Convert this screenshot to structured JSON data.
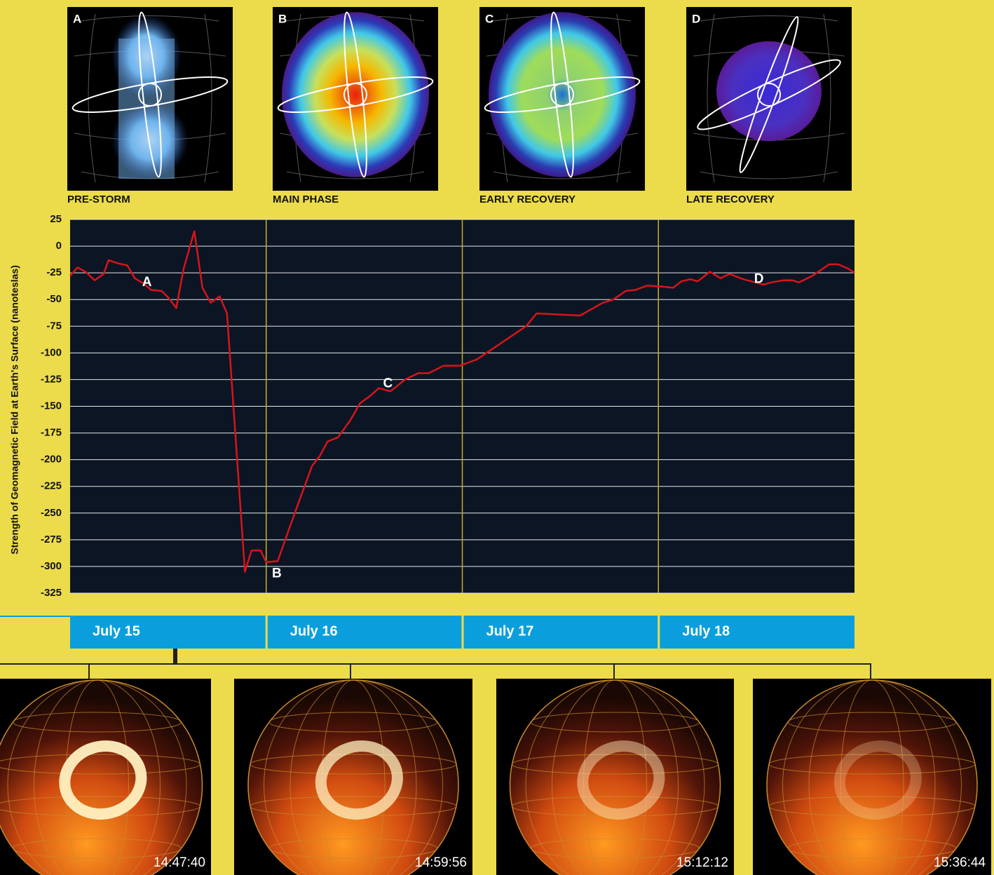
{
  "panels_top": [
    {
      "letter": "A",
      "label": "PRE-STORM"
    },
    {
      "letter": "B",
      "label": "MAIN PHASE"
    },
    {
      "letter": "C",
      "label": "EARLY RECOVERY"
    },
    {
      "letter": "D",
      "label": "LATE RECOVERY"
    }
  ],
  "chart_data": {
    "type": "line",
    "y_label": "Strength of Geomagnetic Field at Earth's Surface (nanoteslas)",
    "x": [
      0,
      0.9,
      1.9,
      3.0,
      4.1,
      4.7,
      5.8,
      7.0,
      7.9,
      9.0,
      9.9,
      11.2,
      12.0,
      13.0,
      13.9,
      15.2,
      16.2,
      17.2,
      18.3,
      19.2,
      21.4,
      22.2,
      23.3,
      24.0,
      25.4,
      27.5,
      29.6,
      30.6,
      31.5,
      32.8,
      34.3,
      35.5,
      36.6,
      37.8,
      39.2,
      41.0,
      42.6,
      43.9,
      45.7,
      47.7,
      49.8,
      55.8,
      57.1,
      62.4,
      65.2,
      66.5,
      68.0,
      69.2,
      70.6,
      72.6,
      73.8,
      74.8,
      75.9,
      76.8,
      78.3,
      79.6,
      80.7,
      82.4,
      84.9,
      85.8,
      87.3,
      88.4,
      89.2,
      90.8,
      92.9,
      94.0,
      95.2,
      96.0
    ],
    "series": [
      {
        "color": "#d8141a",
        "values": [
          -28,
          -20,
          -24,
          -32,
          -26,
          -13,
          -16,
          -18,
          -30,
          -35,
          -41,
          -42,
          -48,
          -58,
          -21,
          14,
          -39,
          -53,
          -47,
          -63,
          -305,
          -285,
          -285,
          -296,
          -295,
          -250,
          -206,
          -196,
          -183,
          -179,
          -163,
          -147,
          -141,
          -133,
          -136,
          -125,
          -119,
          -119,
          -112,
          -112,
          -106,
          -75,
          -63,
          -65,
          -53,
          -50,
          -42,
          -41,
          -37,
          -38,
          -39,
          -33,
          -31,
          -33,
          -24,
          -30,
          -26,
          -31,
          -36,
          -34,
          -32,
          -32,
          -34,
          -28,
          -17,
          -17,
          -21,
          -25
        ]
      }
    ],
    "xlim": [
      0,
      96
    ],
    "ylim": [
      -325,
      25
    ],
    "yticks": [
      25,
      0,
      -25,
      -50,
      -75,
      -100,
      -125,
      -150,
      -175,
      -200,
      -225,
      -250,
      -275,
      -300,
      -325
    ],
    "grid": true,
    "days": [
      "July 15",
      "July 16",
      "July 17",
      "July 18"
    ],
    "annotations": [
      {
        "text": "A",
        "x": 9.4,
        "y": -34
      },
      {
        "text": "B",
        "x": 25.3,
        "y": -307
      },
      {
        "text": "C",
        "x": 38.9,
        "y": -129
      },
      {
        "text": "D",
        "x": 84.3,
        "y": -31
      }
    ]
  },
  "images_bottom": [
    {
      "time": "14:47:40"
    },
    {
      "time": "14:59:56"
    },
    {
      "time": "15:12:12"
    },
    {
      "time": "15:36:44"
    }
  ]
}
